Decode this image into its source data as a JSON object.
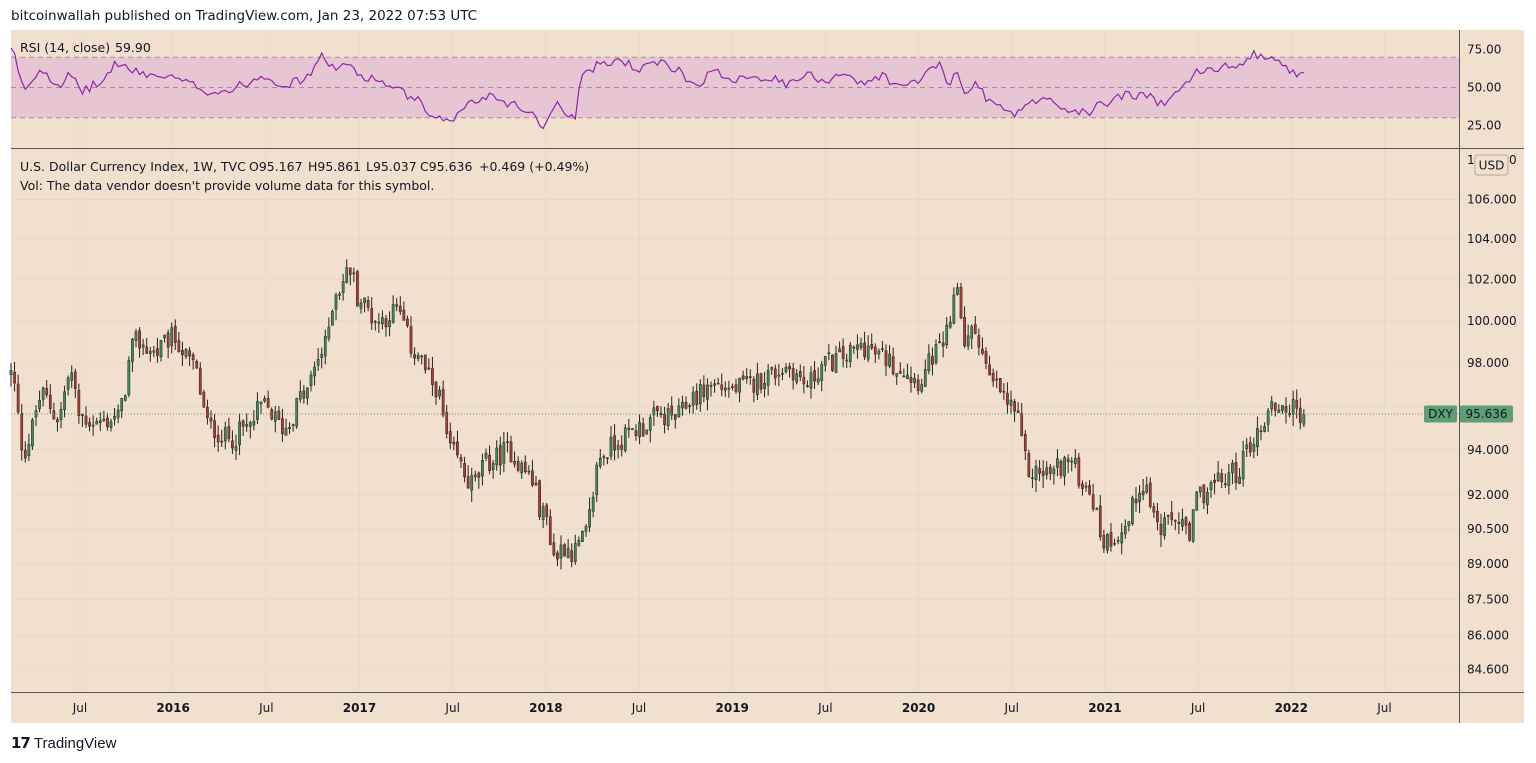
{
  "header": {
    "text": "bitcoinwallah published on TradingView.com, Jan 23, 2022 07:53 UTC"
  },
  "footer": {
    "logo_glyph": "17",
    "brand": "TradingView"
  },
  "colors": {
    "background": "#f2e0cf",
    "page": "#ffffff",
    "up": "#3d8b58",
    "down": "#b03a2e",
    "rsi_line": "#8e24aa",
    "rsi_band": "#e6c6d2",
    "price_tag": "#5e9e74",
    "grid": "#ead8c6"
  },
  "rsi_panel": {
    "label": "RSI (14, close)",
    "value": "59.90",
    "levels": [
      75,
      50,
      25
    ],
    "level_labels": [
      "75.00",
      "50.00",
      "25.00"
    ],
    "band_upper": 70,
    "band_lower": 30,
    "ylim": [
      10,
      88
    ]
  },
  "price_panel": {
    "title": "U.S. Dollar Currency Index, 1W, TVC",
    "open": "O95.167",
    "high": "H95.861",
    "low": "L95.037",
    "close": "C95.636",
    "change": "+0.469 (+0.49%)",
    "vol_note": "Vol: The data vendor doesn't provide volume data for this symbol.",
    "currency": "USD",
    "symbol_tag": "DXY",
    "last_price": "95.636",
    "last_value": 95.636,
    "y_ticks": [
      106.0,
      104.0,
      102.0,
      100.0,
      98.0,
      96.0,
      94.0,
      92.0,
      90.5,
      89.0,
      87.5,
      86.0,
      84.6
    ],
    "y_tick_labels": [
      "106.000",
      "104.000",
      "102.000",
      "100.000",
      "98.000",
      "96.000",
      "94.000",
      "92.000",
      "90.500",
      "89.000",
      "87.500",
      "86.000",
      "84.600"
    ],
    "top_partial_label": "108.000",
    "scale": "log",
    "ylim": [
      83.7,
      108.6
    ]
  },
  "x_axis": {
    "labels": [
      "Jul",
      "2016",
      "Jul",
      "2017",
      "Jul",
      "2018",
      "Jul",
      "2019",
      "Jul",
      "2020",
      "Jul",
      "2021",
      "Jul",
      "2022",
      "Jul"
    ],
    "label_dates": [
      2015.5,
      2016.0,
      2016.5,
      2017.0,
      2017.5,
      2018.0,
      2018.5,
      2019.0,
      2019.5,
      2020.0,
      2020.5,
      2021.0,
      2021.5,
      2022.0,
      2022.5
    ],
    "bold": [
      false,
      true,
      false,
      true,
      false,
      true,
      false,
      true,
      false,
      true,
      false,
      true,
      false,
      true,
      false
    ],
    "xlim": [
      2015.13,
      2022.9
    ]
  },
  "chart_data": {
    "type": "candlestick",
    "interval": "1W",
    "symbol": "DXY",
    "anchors_x": [
      2015.13,
      2015.2,
      2015.3,
      2015.38,
      2015.45,
      2015.5,
      2015.6,
      2015.7,
      2015.8,
      2015.9,
      2016.0,
      2016.1,
      2016.2,
      2016.3,
      2016.4,
      2016.48,
      2016.6,
      2016.7,
      2016.8,
      2016.88,
      2016.95,
      2017.0,
      2017.1,
      2017.2,
      2017.3,
      2017.4,
      2017.5,
      2017.6,
      2017.7,
      2017.8,
      2017.9,
      2018.0,
      2018.05,
      2018.1,
      2018.15,
      2018.2,
      2018.3,
      2018.4,
      2018.5,
      2018.6,
      2018.7,
      2018.8,
      2018.9,
      2019.0,
      2019.1,
      2019.2,
      2019.3,
      2019.4,
      2019.5,
      2019.6,
      2019.7,
      2019.8,
      2019.9,
      2020.0,
      2020.1,
      2020.17,
      2020.2,
      2020.25,
      2020.3,
      2020.4,
      2020.5,
      2020.6,
      2020.7,
      2020.8,
      2020.9,
      2021.0,
      2021.1,
      2021.2,
      2021.3,
      2021.4,
      2021.45,
      2021.5,
      2021.6,
      2021.7,
      2021.8,
      2021.9,
      2022.0,
      2022.06
    ],
    "anchors_close": [
      97.5,
      94.0,
      96.5,
      95.5,
      97.5,
      95.5,
      95.2,
      95.5,
      99.0,
      98.5,
      99.2,
      98.0,
      95.0,
      94.5,
      95.0,
      96.0,
      95.0,
      96.5,
      98.5,
      101.5,
      102.5,
      101.0,
      100.0,
      100.5,
      98.5,
      97.0,
      93.8,
      92.5,
      93.5,
      94.0,
      93.0,
      91.0,
      89.3,
      89.8,
      89.5,
      90.0,
      93.8,
      94.5,
      95.0,
      95.5,
      95.5,
      96.5,
      97.0,
      96.8,
      97.0,
      97.5,
      97.8,
      97.0,
      98.0,
      98.3,
      98.8,
      98.3,
      97.8,
      97.2,
      98.5,
      99.5,
      102.0,
      99.0,
      99.5,
      97.0,
      96.0,
      93.0,
      93.0,
      93.5,
      92.5,
      90.0,
      90.5,
      92.5,
      90.5,
      91.0,
      90.0,
      92.0,
      92.5,
      93.0,
      94.5,
      96.0,
      95.9,
      95.636
    ],
    "anchors_rsi": [
      75,
      50,
      62,
      52,
      58,
      48,
      52,
      66,
      60,
      58,
      56,
      52,
      47,
      48,
      53,
      58,
      52,
      55,
      70,
      62,
      65,
      58,
      55,
      48,
      42,
      28,
      30,
      40,
      45,
      40,
      35,
      25,
      40,
      35,
      30,
      60,
      65,
      68,
      62,
      66,
      62,
      52,
      60,
      56,
      58,
      56,
      52,
      58,
      55,
      60,
      52,
      58,
      50,
      55,
      65,
      52,
      60,
      48,
      52,
      40,
      32,
      40,
      42,
      35,
      33,
      40,
      45,
      45,
      40,
      50,
      55,
      60,
      62,
      65,
      72,
      70,
      60,
      59.9
    ]
  }
}
